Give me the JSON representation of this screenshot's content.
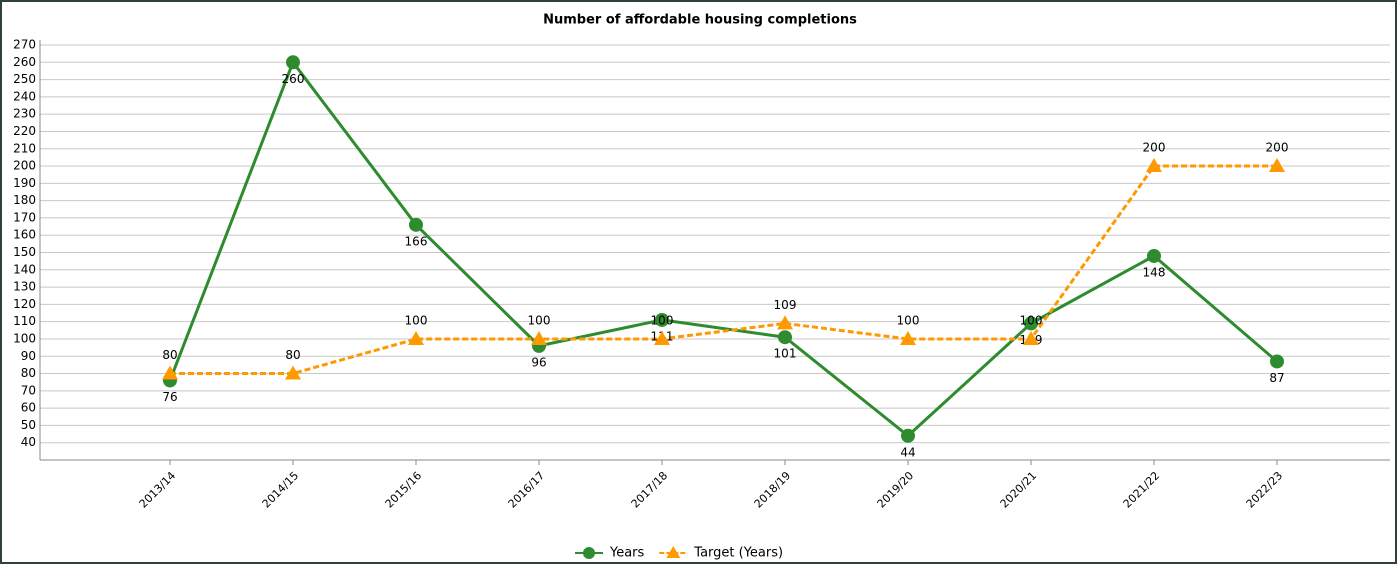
{
  "chart_data": {
    "type": "line",
    "title": "Number of affordable housing completions",
    "categories": [
      "2013/14",
      "2014/15",
      "2015/16",
      "2016/17",
      "2017/18",
      "2018/19",
      "2019/20",
      "2020/21",
      "2021/22",
      "2022/23"
    ],
    "series": [
      {
        "name": "Years",
        "color": "#2e8b2e",
        "marker": "circle",
        "dashed": false,
        "values": [
          76,
          260,
          166,
          96,
          111,
          101,
          44,
          109,
          148,
          87
        ]
      },
      {
        "name": "Target (Years)",
        "color": "#ff9900",
        "marker": "triangle",
        "dashed": true,
        "values": [
          80,
          80,
          100,
          100,
          100,
          109,
          100,
          100,
          200,
          200
        ]
      }
    ],
    "ylim": [
      30,
      270
    ],
    "yticks": [
      40,
      50,
      60,
      70,
      80,
      90,
      100,
      110,
      120,
      130,
      140,
      150,
      160,
      170,
      180,
      190,
      200,
      210,
      220,
      230,
      240,
      250,
      260,
      270
    ],
    "grid": true,
    "legend": "bottom"
  }
}
